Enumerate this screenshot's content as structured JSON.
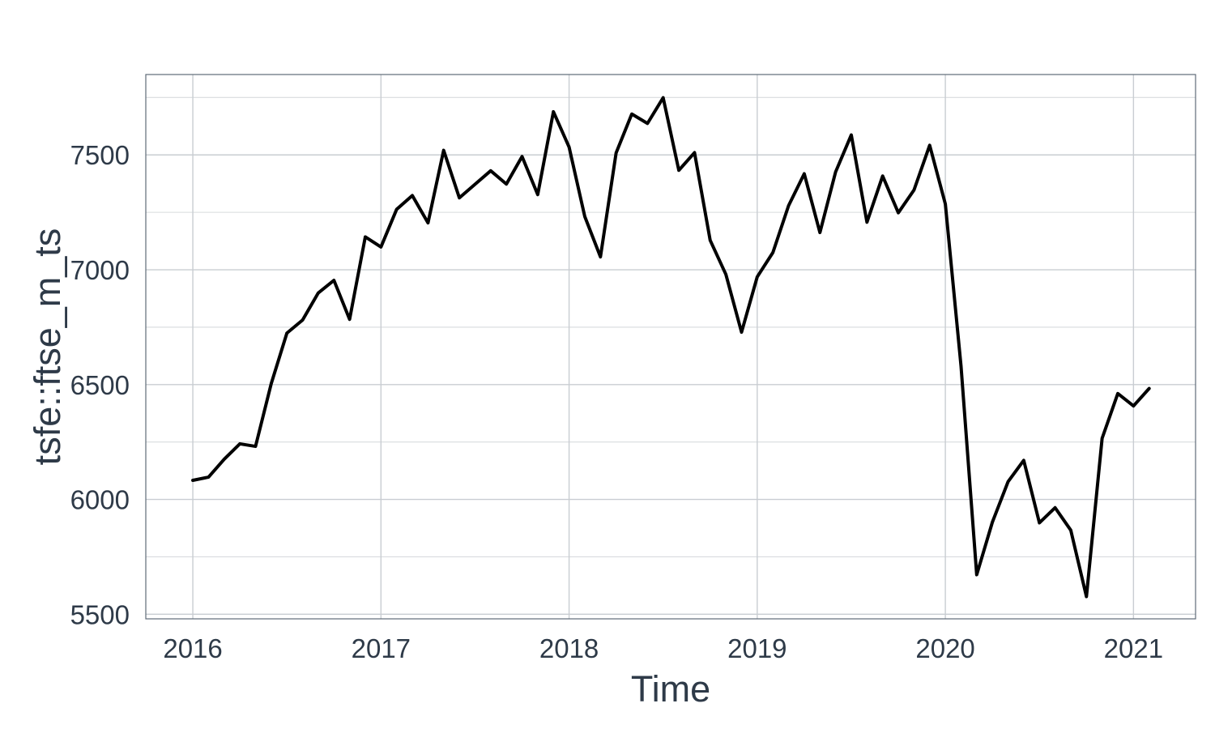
{
  "chart_data": {
    "type": "line",
    "title": "",
    "xlabel": "Time",
    "ylabel": "tsfe::ftse_m_ts",
    "xlim": [
      2015.75,
      2021.33
    ],
    "ylim": [
      5480,
      7850
    ],
    "x_ticks": [
      2016,
      2017,
      2018,
      2019,
      2020,
      2021
    ],
    "x_tick_labels": [
      "2016",
      "2017",
      "2018",
      "2019",
      "2020",
      "2021"
    ],
    "y_ticks": [
      5500,
      6000,
      6500,
      7000,
      7500
    ],
    "y_tick_labels": [
      "5500",
      "6000",
      "6500",
      "7000",
      "7500"
    ],
    "y_minor_ticks": [
      5750,
      6250,
      6750,
      7250,
      7750
    ],
    "grid": true,
    "line_color": "#000000",
    "series": [
      {
        "x": [
          2016.0,
          2016.0833,
          2016.1667,
          2016.25,
          2016.3333,
          2016.4167,
          2016.5,
          2016.5833,
          2016.6667,
          2016.75,
          2016.8333,
          2016.9167,
          2017.0,
          2017.0833,
          2017.1667,
          2017.25,
          2017.3333,
          2017.4167,
          2017.5,
          2017.5833,
          2017.6667,
          2017.75,
          2017.8333,
          2017.9167,
          2018.0,
          2018.0833,
          2018.1667,
          2018.25,
          2018.3333,
          2018.4167,
          2018.5,
          2018.5833,
          2018.6667,
          2018.75,
          2018.8333,
          2018.9167,
          2019.0,
          2019.0833,
          2019.1667,
          2019.25,
          2019.3333,
          2019.4167,
          2019.5,
          2019.5833,
          2019.6667,
          2019.75,
          2019.8333,
          2019.9167,
          2020.0,
          2020.0833,
          2020.1667,
          2020.25,
          2020.3333,
          2020.4167,
          2020.5,
          2020.5833,
          2020.6667,
          2020.75,
          2020.8333,
          2020.9167,
          2021.0,
          2021.0833
        ],
        "values": [
          6083,
          6097,
          6175,
          6242,
          6231,
          6504,
          6724,
          6781,
          6899,
          6954,
          6784,
          7143,
          7099,
          7263,
          7323,
          7204,
          7520,
          7313,
          7372,
          7431,
          7373,
          7493,
          7327,
          7688,
          7534,
          7232,
          7056,
          7509,
          7678,
          7637,
          7749,
          7433,
          7510,
          7128,
          6980,
          6728,
          6969,
          7075,
          7279,
          7418,
          7162,
          7426,
          7587,
          7207,
          7408,
          7248,
          7347,
          7542,
          7286,
          6581,
          5672,
          5901,
          6077,
          6170,
          5898,
          5964,
          5866,
          5577,
          6266,
          6461,
          6407,
          6483
        ]
      }
    ]
  }
}
